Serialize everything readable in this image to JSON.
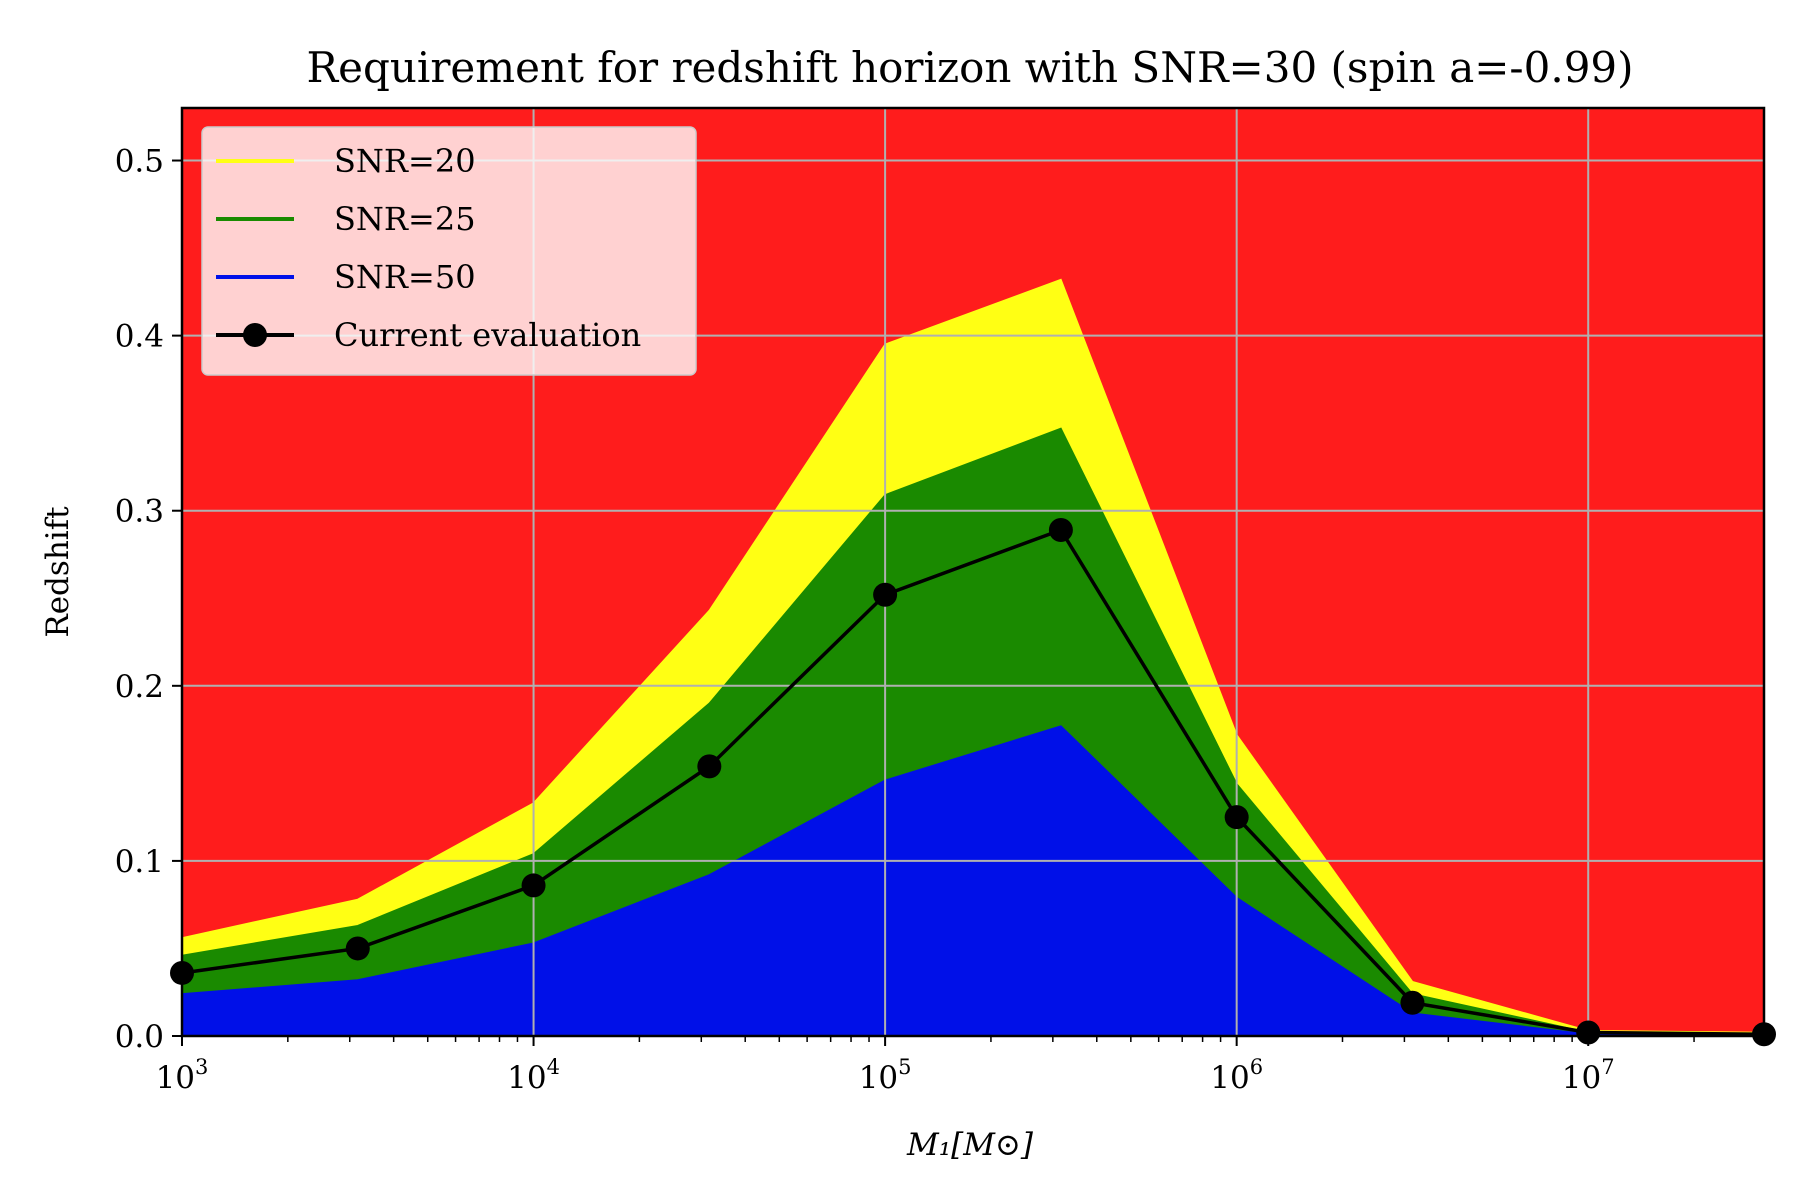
{
  "chart_data": {
    "type": "area",
    "title": "Requirement for redshift horizon with SNR=30 (spin a=-0.99)",
    "xlabel": "M₁[M⊙]",
    "ylabel": "Redshift",
    "x_scale": "log",
    "xlim": [
      1000,
      31622776
    ],
    "ylim": [
      0,
      0.53
    ],
    "x_ticks": [
      {
        "value": 1000,
        "base": "10",
        "exp": "3"
      },
      {
        "value": 10000,
        "base": "10",
        "exp": "4"
      },
      {
        "value": 100000,
        "base": "10",
        "exp": "5"
      },
      {
        "value": 1000000,
        "base": "10",
        "exp": "6"
      },
      {
        "value": 10000000,
        "base": "10",
        "exp": "7"
      }
    ],
    "y_ticks": [
      0.0,
      0.1,
      0.2,
      0.3,
      0.4,
      0.5
    ],
    "y_tick_labels": [
      "0.0",
      "0.1",
      "0.2",
      "0.3",
      "0.4",
      "0.5"
    ],
    "grid": true,
    "legend_position": "top-left",
    "background_region_color": "#ff1c1c",
    "x": [
      1000,
      3162,
      10000,
      31623,
      100000,
      316228,
      1000000,
      3162278,
      10000000,
      31622776
    ],
    "series": [
      {
        "name": "SNR=20",
        "kind": "fill",
        "color": "#ffff14",
        "values": [
          0.056,
          0.078,
          0.133,
          0.243,
          0.395,
          0.432,
          0.172,
          0.031,
          0.003,
          0.002
        ]
      },
      {
        "name": "SNR=25",
        "kind": "fill",
        "color": "#1a8a00",
        "values": [
          0.046,
          0.063,
          0.104,
          0.19,
          0.309,
          0.347,
          0.144,
          0.024,
          0.002,
          0.001
        ]
      },
      {
        "name": "SNR=50",
        "kind": "fill",
        "color": "#0010e8",
        "values": [
          0.024,
          0.032,
          0.053,
          0.092,
          0.146,
          0.177,
          0.079,
          0.013,
          0.001,
          0.0005
        ]
      },
      {
        "name": "Current evaluation",
        "kind": "line-marker",
        "color": "#000000",
        "values": [
          0.036,
          0.05,
          0.086,
          0.154,
          0.252,
          0.289,
          0.125,
          0.019,
          0.002,
          0.001
        ]
      }
    ]
  }
}
